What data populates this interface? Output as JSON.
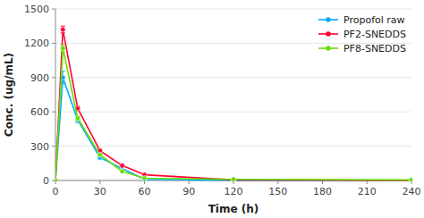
{
  "chart_data": {
    "type": "line",
    "xlabel": "Time (h)",
    "ylabel": "Conc. (ug/mL)",
    "xlim": [
      0,
      240
    ],
    "ylim": [
      0,
      1500
    ],
    "xticks": [
      0,
      30,
      60,
      90,
      120,
      150,
      180,
      210,
      240
    ],
    "yticks": [
      0,
      300,
      600,
      900,
      1200,
      1500
    ],
    "legend": "upper right",
    "series": [
      {
        "name": "Propofol raw",
        "color": "#00AAFF",
        "marker": "o",
        "x": [
          0,
          5,
          15,
          30,
          60,
          120,
          240
        ],
        "values": [
          0,
          900,
          530,
          200,
          10,
          0,
          0
        ],
        "errors": [
          0,
          55,
          25,
          15,
          3,
          0,
          0
        ]
      },
      {
        "name": "PF2-SNEDDS",
        "color": "#FF0033",
        "marker": "o",
        "x": [
          0,
          5,
          15,
          30,
          45,
          60,
          120,
          240
        ],
        "values": [
          0,
          1320,
          630,
          260,
          130,
          50,
          5,
          0
        ],
        "errors": [
          0,
          30,
          20,
          15,
          10,
          5,
          0,
          0
        ]
      },
      {
        "name": "PF8-SNEDDS",
        "color": "#66DD00",
        "marker": "o",
        "x": [
          0,
          5,
          15,
          30,
          45,
          60,
          120,
          240
        ],
        "values": [
          0,
          1155,
          545,
          225,
          80,
          20,
          10,
          5
        ],
        "errors": [
          0,
          30,
          20,
          12,
          7,
          3,
          2,
          1
        ]
      }
    ]
  }
}
